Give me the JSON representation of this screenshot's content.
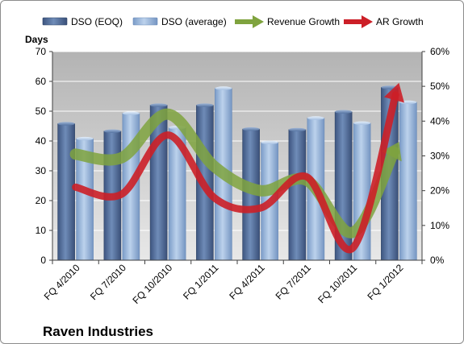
{
  "chart_data": {
    "type": "bar",
    "title": "Raven Industries",
    "ylabel": "Days",
    "ylim": [
      0,
      70
    ],
    "y_ticks": [
      "0",
      "10",
      "20",
      "30",
      "40",
      "50",
      "60",
      "70"
    ],
    "y2lim": [
      0,
      60
    ],
    "y2_ticks": [
      "0%",
      "10%",
      "20%",
      "30%",
      "40%",
      "50%",
      "60%"
    ],
    "grid": true,
    "legend_position": "top",
    "categories": [
      "FQ 4/2010",
      "FQ 7/2010",
      "FQ 10/2010",
      "FQ 1/2011",
      "FQ 4/2011",
      "FQ 7/2011",
      "FQ 10/2011",
      "FQ 1/2012"
    ],
    "bar_series": [
      {
        "name": "DSO (EOQ)",
        "values": [
          45.8,
          43.3,
          52.0,
          52.0,
          44.0,
          43.8,
          49.8,
          58.0
        ],
        "color": "#4f6c98"
      },
      {
        "name": "DSO (average)",
        "values": [
          40.8,
          49.3,
          44.5,
          57.7,
          39.5,
          47.7,
          46.0,
          53.0
        ],
        "color": "#95b3d7"
      }
    ],
    "line_series": [
      {
        "name": "Revenue Growth",
        "axis": "secondary",
        "values": [
          30.5,
          29.5,
          42.0,
          27.0,
          20.0,
          23.0,
          8.0,
          34.0
        ],
        "color": "#7fa33e"
      },
      {
        "name": "AR Growth",
        "axis": "secondary",
        "values": [
          21.0,
          19.0,
          36.0,
          18.0,
          15.0,
          24.0,
          3.5,
          51.0
        ],
        "color": "#cc1f27"
      }
    ],
    "plot_background": "#bfbfbf",
    "gridline_color": "#ffffff"
  }
}
